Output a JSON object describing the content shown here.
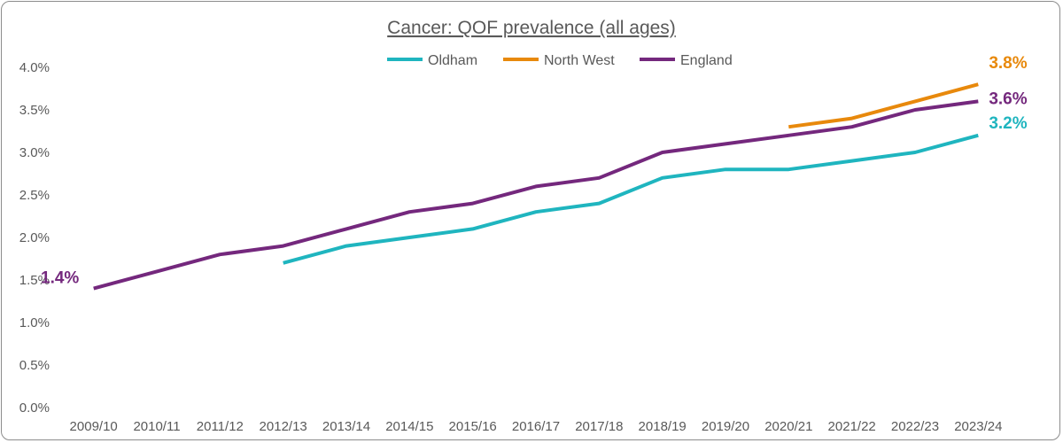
{
  "chart_data": {
    "type": "line",
    "title": "Cancer: QOF prevalence (all ages)",
    "xlabel": "",
    "ylabel": "",
    "ylim": [
      0,
      4.0
    ],
    "y_ticks": [
      0,
      0.5,
      1.0,
      1.5,
      2.0,
      2.5,
      3.0,
      3.5,
      4.0
    ],
    "y_tick_labels": [
      "0.0%",
      "0.5%",
      "1.0%",
      "1.5%",
      "2.0%",
      "2.5%",
      "3.0%",
      "3.5%",
      "4.0%"
    ],
    "grid": false,
    "legend_position": "top-center",
    "categories": [
      "2009/10",
      "2010/11",
      "2011/12",
      "2012/13",
      "2013/14",
      "2014/15",
      "2015/16",
      "2016/17",
      "2017/18",
      "2018/19",
      "2019/20",
      "2020/21",
      "2021/22",
      "2022/23",
      "2023/24"
    ],
    "series": [
      {
        "name": "Oldham",
        "color": "#1fb5bf",
        "values": [
          null,
          null,
          null,
          1.7,
          1.9,
          2.0,
          2.1,
          2.3,
          2.4,
          2.7,
          2.8,
          2.8,
          2.9,
          3.0,
          3.2
        ],
        "end_label": "3.2%"
      },
      {
        "name": "North West",
        "color": "#e8890c",
        "values": [
          null,
          null,
          null,
          null,
          null,
          null,
          null,
          null,
          null,
          null,
          null,
          3.3,
          3.4,
          3.6,
          3.8
        ],
        "end_label": "3.8%"
      },
      {
        "name": "England",
        "color": "#74287d",
        "values": [
          1.4,
          1.6,
          1.8,
          1.9,
          2.1,
          2.3,
          2.4,
          2.6,
          2.7,
          3.0,
          3.1,
          3.2,
          3.3,
          3.5,
          3.6
        ],
        "end_label": "3.6%",
        "start_label": "1.4%"
      }
    ]
  }
}
